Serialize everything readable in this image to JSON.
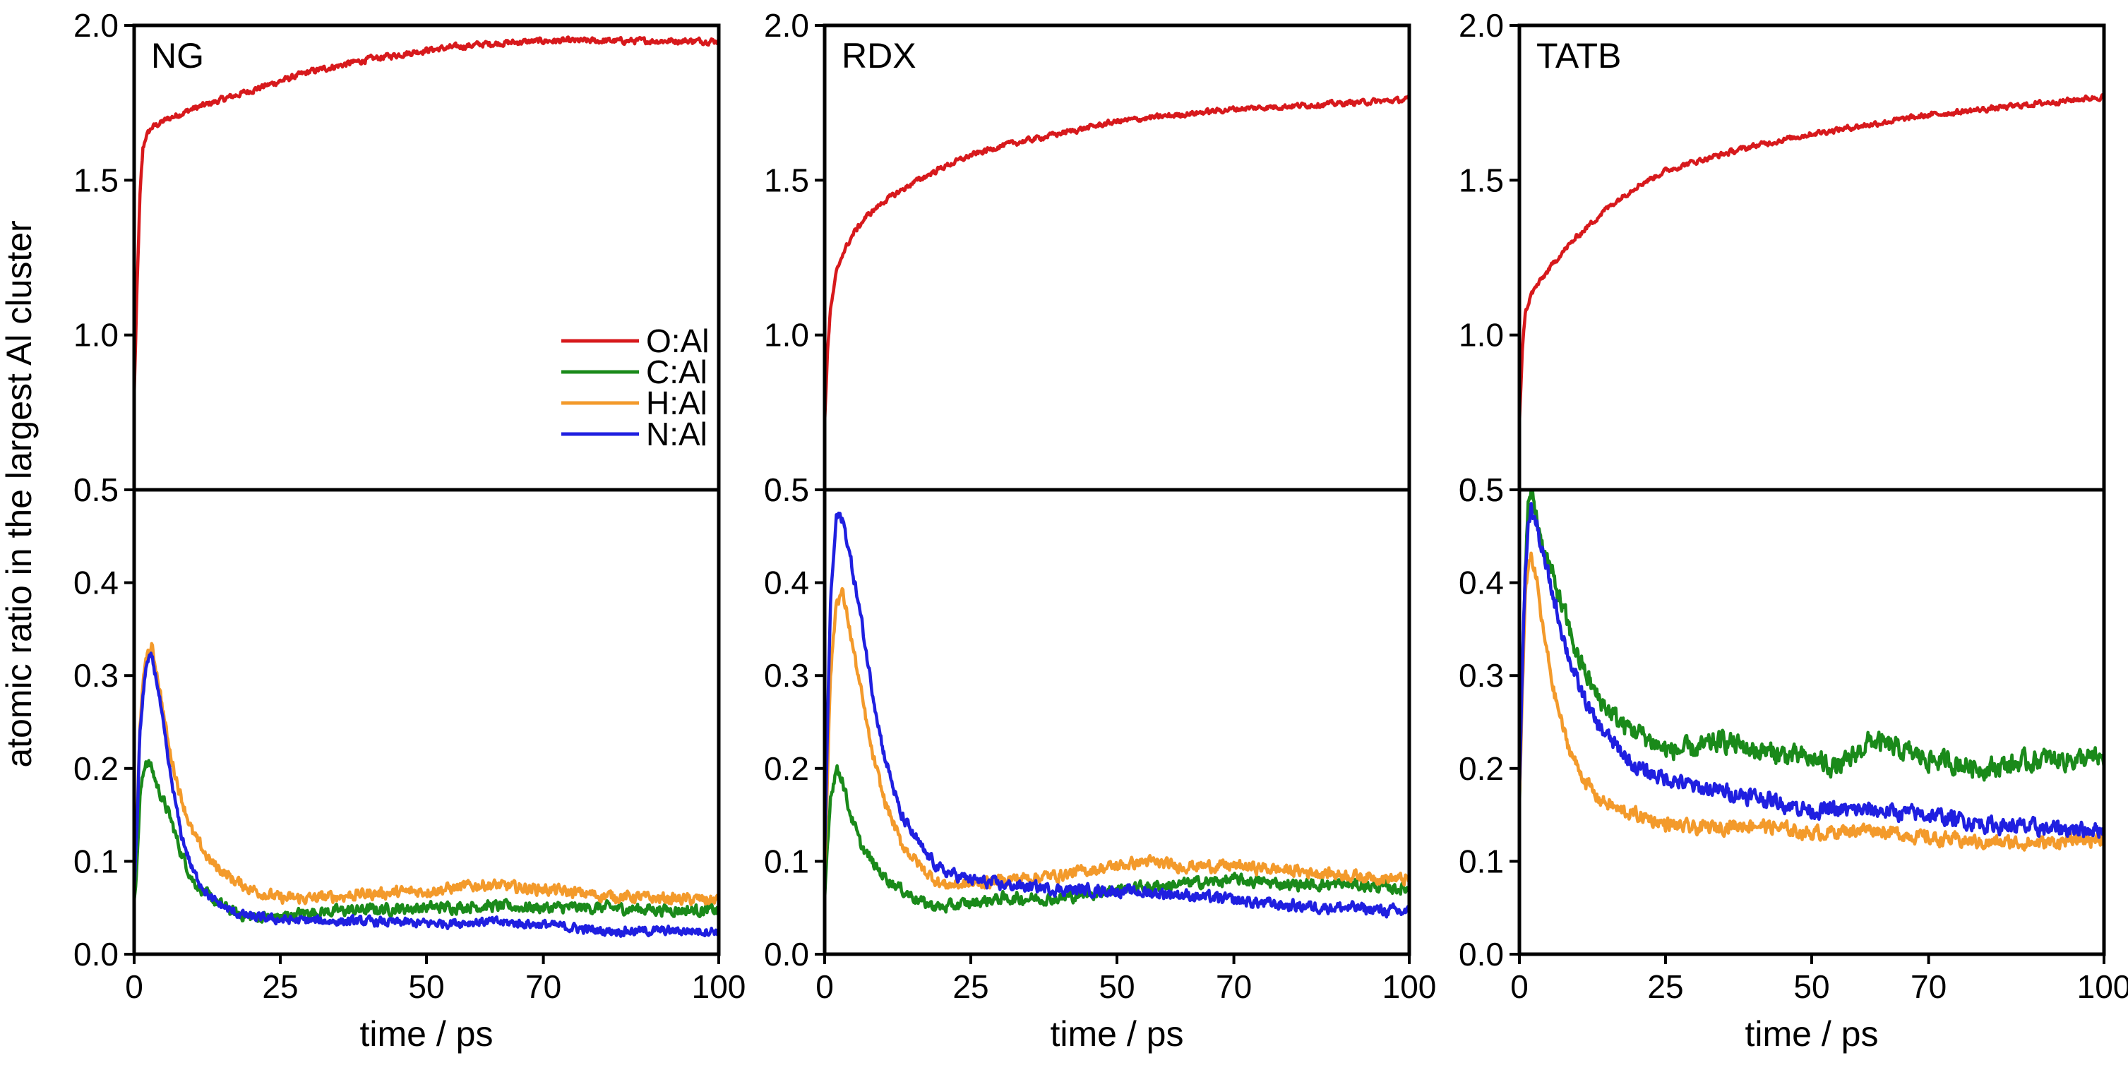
{
  "figure": {
    "ylabel": "atomic ratio in the largest Al cluster"
  },
  "legend": {
    "entries": [
      {
        "label": "O:Al",
        "color": "#d7191c"
      },
      {
        "label": "C:Al",
        "color": "#1a8a1a"
      },
      {
        "label": "H:Al",
        "color": "#f39a2b"
      },
      {
        "label": "N:Al",
        "color": "#1f1fe0"
      }
    ]
  },
  "chart_data": [
    {
      "type": "line",
      "title": "NG",
      "xlabel": "time / ps",
      "xlim": [
        0,
        100
      ],
      "xticks": [
        0,
        25,
        50,
        70,
        100
      ],
      "xtick_labels": [
        "0",
        "25",
        "50",
        "70",
        "100"
      ],
      "top": {
        "ylim": [
          0.5,
          2.0
        ],
        "yticks": [
          0.5,
          1.0,
          1.5,
          2.0
        ],
        "ytick_labels": [
          "0.5",
          "1.0",
          "1.5",
          "2.0"
        ],
        "series": [
          {
            "name": "O:Al",
            "color": "#d7191c",
            "noise": 0.008,
            "x": [
              0,
              0.5,
              1,
              1.5,
              2,
              3,
              4,
              6,
              10,
              15,
              20,
              25,
              30,
              40,
              50,
              60,
              70,
              80,
              90,
              100
            ],
            "y": [
              0.8,
              1.15,
              1.45,
              1.6,
              1.64,
              1.67,
              1.68,
              1.7,
              1.73,
              1.76,
              1.79,
              1.82,
              1.85,
              1.89,
              1.92,
              1.94,
              1.95,
              1.95,
              1.95,
              1.95
            ]
          }
        ]
      },
      "bottom": {
        "ylim": [
          0.0,
          0.5
        ],
        "yticks": [
          0.0,
          0.1,
          0.2,
          0.3,
          0.4,
          0.5
        ],
        "ytick_labels": [
          "0.0",
          "0.1",
          "0.2",
          "0.3",
          "0.4",
          "0.5"
        ],
        "series": [
          {
            "name": "C:Al",
            "color": "#1a8a1a",
            "noise": 0.005,
            "x": [
              0,
              0.5,
              1,
              2,
              3,
              4,
              6,
              8,
              10,
              13,
              17,
              20,
              25,
              30,
              40,
              50,
              60,
              70,
              80,
              90,
              100
            ],
            "y": [
              0.06,
              0.1,
              0.17,
              0.21,
              0.2,
              0.18,
              0.15,
              0.11,
              0.08,
              0.06,
              0.045,
              0.04,
              0.04,
              0.045,
              0.048,
              0.05,
              0.052,
              0.05,
              0.05,
              0.048,
              0.047
            ]
          },
          {
            "name": "H:Al",
            "color": "#f39a2b",
            "noise": 0.005,
            "x": [
              0,
              0.5,
              1,
              2,
              3,
              4,
              6,
              8,
              10,
              13,
              17,
              20,
              25,
              30,
              40,
              50,
              60,
              65,
              70,
              80,
              90,
              100
            ],
            "y": [
              0.07,
              0.14,
              0.25,
              0.32,
              0.33,
              0.3,
              0.22,
              0.17,
              0.13,
              0.1,
              0.08,
              0.07,
              0.06,
              0.06,
              0.065,
              0.068,
              0.075,
              0.072,
              0.07,
              0.063,
              0.06,
              0.058
            ]
          },
          {
            "name": "N:Al",
            "color": "#1f1fe0",
            "noise": 0.004,
            "x": [
              0,
              0.5,
              1,
              2,
              3,
              4,
              6,
              8,
              10,
              13,
              17,
              20,
              25,
              30,
              40,
              50,
              60,
              70,
              80,
              90,
              100
            ],
            "y": [
              0.07,
              0.14,
              0.24,
              0.31,
              0.32,
              0.29,
              0.2,
              0.13,
              0.09,
              0.06,
              0.045,
              0.04,
              0.037,
              0.036,
              0.035,
              0.033,
              0.035,
              0.032,
              0.025,
              0.025,
              0.025
            ]
          }
        ]
      }
    },
    {
      "type": "line",
      "title": "RDX",
      "xlabel": "time / ps",
      "xlim": [
        0,
        100
      ],
      "xticks": [
        0,
        25,
        50,
        70,
        100
      ],
      "xtick_labels": [
        "0",
        "25",
        "50",
        "70",
        "100"
      ],
      "top": {
        "ylim": [
          0.5,
          2.0
        ],
        "yticks": [
          0.5,
          1.0,
          1.5,
          2.0
        ],
        "ytick_labels": [
          "0.5",
          "1.0",
          "1.5",
          "2.0"
        ],
        "series": [
          {
            "name": "O:Al",
            "color": "#d7191c",
            "noise": 0.007,
            "x": [
              0,
              0.5,
              1,
              2,
              3,
              5,
              7,
              10,
              15,
              20,
              25,
              30,
              40,
              50,
              60,
              70,
              80,
              90,
              100
            ],
            "y": [
              0.72,
              0.95,
              1.08,
              1.2,
              1.26,
              1.33,
              1.38,
              1.43,
              1.49,
              1.54,
              1.58,
              1.61,
              1.65,
              1.69,
              1.71,
              1.73,
              1.74,
              1.75,
              1.76
            ]
          }
        ]
      },
      "bottom": {
        "ylim": [
          0.0,
          0.5
        ],
        "yticks": [
          0.0,
          0.1,
          0.2,
          0.3,
          0.4,
          0.5
        ],
        "ytick_labels": [
          "0.0",
          "0.1",
          "0.2",
          "0.3",
          "0.4",
          "0.5"
        ],
        "series": [
          {
            "name": "C:Al",
            "color": "#1a8a1a",
            "noise": 0.005,
            "x": [
              0,
              0.5,
              1,
              2,
              3,
              4,
              6,
              8,
              10,
              13,
              17,
              20,
              25,
              30,
              40,
              50,
              60,
              70,
              80,
              90,
              100
            ],
            "y": [
              0.06,
              0.12,
              0.17,
              0.2,
              0.19,
              0.16,
              0.12,
              0.1,
              0.085,
              0.07,
              0.055,
              0.05,
              0.055,
              0.06,
              0.06,
              0.07,
              0.075,
              0.08,
              0.075,
              0.075,
              0.07
            ]
          },
          {
            "name": "H:Al",
            "color": "#f39a2b",
            "noise": 0.005,
            "x": [
              0,
              0.5,
              1,
              2,
              3,
              4,
              6,
              8,
              10,
              13,
              17,
              20,
              25,
              30,
              40,
              50,
              55,
              60,
              70,
              80,
              90,
              100
            ],
            "y": [
              0.09,
              0.2,
              0.3,
              0.38,
              0.39,
              0.36,
              0.29,
              0.22,
              0.17,
              0.12,
              0.09,
              0.075,
              0.075,
              0.08,
              0.085,
              0.095,
              0.1,
              0.095,
              0.095,
              0.09,
              0.085,
              0.08
            ]
          },
          {
            "name": "N:Al",
            "color": "#1f1fe0",
            "noise": 0.005,
            "x": [
              0,
              0.5,
              1,
              2,
              3,
              4,
              6,
              8,
              10,
              13,
              17,
              20,
              25,
              30,
              40,
              50,
              60,
              70,
              80,
              90,
              100
            ],
            "y": [
              0.1,
              0.25,
              0.38,
              0.47,
              0.47,
              0.44,
              0.37,
              0.29,
              0.22,
              0.15,
              0.11,
              0.09,
              0.08,
              0.075,
              0.07,
              0.068,
              0.065,
              0.058,
              0.052,
              0.05,
              0.045
            ]
          }
        ]
      }
    },
    {
      "type": "line",
      "title": "TATB",
      "xlabel": "time / ps",
      "xlim": [
        0,
        100
      ],
      "xticks": [
        0,
        25,
        50,
        70,
        100
      ],
      "xtick_labels": [
        "0",
        "25",
        "50",
        "70",
        "100"
      ],
      "top": {
        "ylim": [
          0.5,
          2.0
        ],
        "yticks": [
          0.5,
          1.0,
          1.5,
          2.0
        ],
        "ytick_labels": [
          "0.5",
          "1.0",
          "1.5",
          "2.0"
        ],
        "series": [
          {
            "name": "O:Al",
            "color": "#d7191c",
            "noise": 0.007,
            "x": [
              0,
              0.5,
              1,
              2,
              3,
              5,
              7,
              10,
              15,
              20,
              25,
              30,
              40,
              50,
              60,
              70,
              80,
              90,
              100
            ],
            "y": [
              0.72,
              0.95,
              1.07,
              1.13,
              1.16,
              1.21,
              1.26,
              1.32,
              1.41,
              1.48,
              1.53,
              1.56,
              1.61,
              1.65,
              1.68,
              1.71,
              1.73,
              1.75,
              1.77
            ]
          }
        ]
      },
      "bottom": {
        "ylim": [
          0.0,
          0.5
        ],
        "yticks": [
          0.0,
          0.1,
          0.2,
          0.3,
          0.4,
          0.5
        ],
        "ytick_labels": [
          "0.0",
          "0.1",
          "0.2",
          "0.3",
          "0.4",
          "0.5"
        ],
        "series": [
          {
            "name": "C:Al",
            "color": "#1a8a1a",
            "noise": 0.009,
            "x": [
              0,
              0.5,
              1,
              1.5,
              2,
              3,
              4,
              6,
              8,
              10,
              13,
              17,
              20,
              25,
              30,
              35,
              40,
              50,
              55,
              60,
              70,
              80,
              90,
              100
            ],
            "y": [
              0.16,
              0.3,
              0.42,
              0.48,
              0.5,
              0.47,
              0.44,
              0.4,
              0.36,
              0.32,
              0.28,
              0.25,
              0.24,
              0.22,
              0.22,
              0.23,
              0.22,
              0.21,
              0.2,
              0.23,
              0.21,
              0.2,
              0.21,
              0.21
            ]
          },
          {
            "name": "H:Al",
            "color": "#f39a2b",
            "noise": 0.006,
            "x": [
              0,
              0.5,
              1,
              1.5,
              2,
              3,
              4,
              6,
              8,
              10,
              13,
              17,
              20,
              25,
              30,
              40,
              50,
              60,
              70,
              80,
              90,
              100
            ],
            "y": [
              0.16,
              0.28,
              0.38,
              0.42,
              0.43,
              0.4,
              0.35,
              0.28,
              0.23,
              0.2,
              0.17,
              0.155,
              0.15,
              0.14,
              0.135,
              0.14,
              0.13,
              0.135,
              0.125,
              0.12,
              0.12,
              0.125
            ]
          },
          {
            "name": "N:Al",
            "color": "#1f1fe0",
            "noise": 0.007,
            "x": [
              0,
              0.5,
              1,
              1.5,
              2,
              3,
              4,
              6,
              8,
              10,
              13,
              17,
              20,
              25,
              30,
              40,
              50,
              60,
              70,
              80,
              90,
              100
            ],
            "y": [
              0.17,
              0.3,
              0.41,
              0.46,
              0.48,
              0.46,
              0.43,
              0.38,
              0.33,
              0.29,
              0.25,
              0.22,
              0.2,
              0.19,
              0.18,
              0.17,
              0.155,
              0.155,
              0.15,
              0.14,
              0.135,
              0.135
            ]
          }
        ]
      }
    }
  ]
}
